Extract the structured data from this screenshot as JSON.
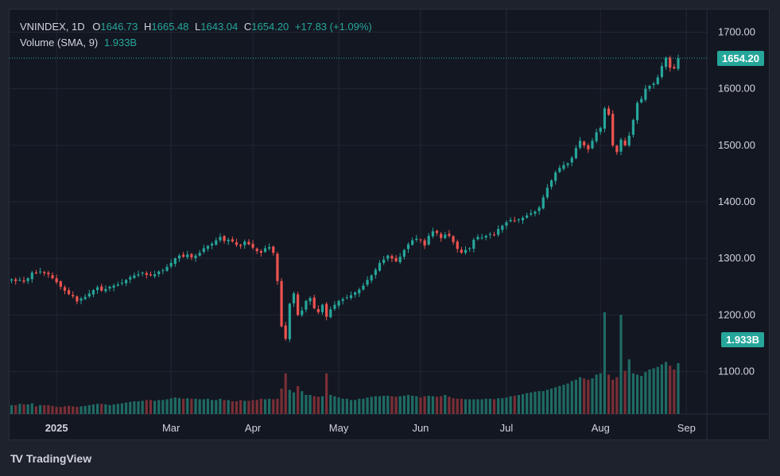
{
  "legend": {
    "symbol": "VNINDEX, 1D",
    "o_label": "O",
    "o_value": "1646.73",
    "h_label": "H",
    "h_value": "1665.48",
    "l_label": "L",
    "l_value": "1643.04",
    "c_label": "C",
    "c_value": "1654.20",
    "change": "+17.83 (+1.09%)",
    "volume_label": "Volume (SMA, 9)",
    "volume_value": "1.933B"
  },
  "price_tag": "1654.20",
  "volume_tag": "1.933B",
  "brand": {
    "name": "TradingView"
  },
  "colors": {
    "up": "#26a69a",
    "down": "#ef5350",
    "vol_up": "#1f6b64",
    "vol_down": "#7a2f36",
    "grid": "#232733",
    "text": "#d1d4dc"
  },
  "chart_data": {
    "type": "candlestick",
    "title": "VNINDEX, 1D",
    "y_ticks": [
      "1100.00",
      "1200.00",
      "1300.00",
      "1400.00",
      "1500.00",
      "1600.00",
      "1700.00"
    ],
    "ylim": [
      1025,
      1740
    ],
    "x_ticks": [
      {
        "label": "2025",
        "index": 11
      },
      {
        "label": "Mar",
        "index": 39
      },
      {
        "label": "Apr",
        "index": 59
      },
      {
        "label": "May",
        "index": 80
      },
      {
        "label": "Jun",
        "index": 100
      },
      {
        "label": "Jul",
        "index": 121
      },
      {
        "label": "Aug",
        "index": 144
      },
      {
        "label": "Sep",
        "index": 165
      }
    ],
    "x_range": [
      -0.5,
      170
    ],
    "last_close": 1654.2,
    "last_volume": "1.933B",
    "closes": [
      1263,
      1260,
      1262,
      1259,
      1265,
      1275,
      1274,
      1277,
      1274,
      1272,
      1265,
      1258,
      1250,
      1243,
      1237,
      1233,
      1224,
      1229,
      1232,
      1238,
      1244,
      1249,
      1243,
      1246,
      1250,
      1252,
      1254,
      1257,
      1262,
      1267,
      1270,
      1272,
      1275,
      1271,
      1270,
      1272,
      1277,
      1279,
      1285,
      1292,
      1300,
      1305,
      1303,
      1307,
      1302,
      1305,
      1310,
      1318,
      1322,
      1326,
      1332,
      1338,
      1331,
      1333,
      1330,
      1324,
      1322,
      1330,
      1325,
      1319,
      1313,
      1310,
      1318,
      1320,
      1310,
      1260,
      1180,
      1158,
      1220,
      1238,
      1200,
      1208,
      1225,
      1230,
      1212,
      1205,
      1218,
      1197,
      1210,
      1218,
      1225,
      1228,
      1231,
      1235,
      1240,
      1245,
      1252,
      1262,
      1270,
      1280,
      1292,
      1298,
      1305,
      1300,
      1295,
      1303,
      1315,
      1325,
      1332,
      1335,
      1332,
      1323,
      1340,
      1348,
      1345,
      1336,
      1342,
      1340,
      1329,
      1317,
      1310,
      1315,
      1318,
      1333,
      1338,
      1337,
      1340,
      1343,
      1341,
      1352,
      1358,
      1364,
      1368,
      1367,
      1369,
      1372,
      1376,
      1380,
      1383,
      1390,
      1408,
      1425,
      1438,
      1452,
      1460,
      1465,
      1468,
      1478,
      1495,
      1508,
      1500,
      1493,
      1508,
      1523,
      1531,
      1565,
      1554,
      1500,
      1488,
      1510,
      1500,
      1517,
      1545,
      1575,
      1582,
      1600,
      1605,
      1609,
      1620,
      1640,
      1655,
      1637,
      1636,
      1654
    ],
    "volume_scale": [
      0.35,
      0.35,
      0.4,
      0.38,
      0.38,
      0.42,
      0.3,
      0.35,
      0.35,
      0.35,
      0.32,
      0.28,
      0.28,
      0.3,
      0.32,
      0.3,
      0.28,
      0.3,
      0.32,
      0.35,
      0.38,
      0.4,
      0.4,
      0.38,
      0.35,
      0.38,
      0.4,
      0.42,
      0.45,
      0.48,
      0.5,
      0.5,
      0.52,
      0.55,
      0.55,
      0.52,
      0.55,
      0.55,
      0.58,
      0.62,
      0.65,
      0.63,
      0.6,
      0.62,
      0.6,
      0.6,
      0.58,
      0.58,
      0.6,
      0.55,
      0.55,
      0.6,
      0.55,
      0.55,
      0.5,
      0.5,
      0.55,
      0.52,
      0.52,
      0.55,
      0.55,
      0.6,
      0.58,
      0.6,
      0.58,
      0.6,
      1.0,
      1.6,
      0.95,
      0.85,
      1.1,
      0.9,
      0.75,
      0.75,
      0.7,
      0.68,
      0.7,
      1.6,
      0.75,
      0.7,
      0.65,
      0.6,
      0.6,
      0.55,
      0.55,
      0.6,
      0.6,
      0.65,
      0.68,
      0.7,
      0.7,
      0.72,
      0.72,
      0.7,
      0.68,
      0.7,
      0.72,
      0.75,
      0.72,
      0.7,
      0.65,
      0.7,
      0.72,
      0.7,
      0.68,
      0.7,
      0.75,
      0.68,
      0.62,
      0.6,
      0.6,
      0.58,
      0.58,
      0.58,
      0.58,
      0.58,
      0.6,
      0.6,
      0.58,
      0.62,
      0.62,
      0.65,
      0.7,
      0.72,
      0.75,
      0.78,
      0.82,
      0.85,
      0.88,
      0.9,
      0.9,
      0.95,
      1.0,
      1.05,
      1.1,
      1.15,
      1.2,
      1.3,
      1.35,
      1.45,
      1.4,
      1.35,
      1.4,
      1.55,
      1.6,
      1.75,
      1.55,
      1.35,
      1.45,
      1.5,
      1.7,
      1.8,
      1.6,
      1.55,
      1.5,
      1.65,
      1.75,
      1.8,
      1.85,
      1.95,
      2.05,
      1.9,
      1.75,
      2.0
    ],
    "volume_spikes": {
      "145": 4.0,
      "149": 3.9,
      "151": 2.15
    }
  }
}
